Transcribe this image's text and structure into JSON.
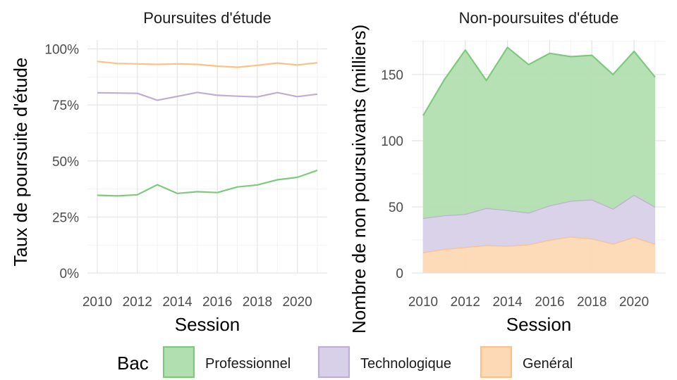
{
  "colors": {
    "Professionnel": {
      "fill": "#b2dfb0",
      "line": "#7fc97f"
    },
    "Technologique": {
      "fill": "#d8d0e8",
      "line": "#beaed4"
    },
    "Genéral": {
      "fill": "#fdd9b5",
      "line": "#fdc086"
    },
    "grid_major": "#e6e6e6",
    "grid_minor": "#f2f2f2"
  },
  "legend": {
    "title": "Bac",
    "position": "bottom",
    "items": [
      "Professionnel",
      "Technologique",
      "Genéral"
    ]
  },
  "chart_data": [
    {
      "type": "line",
      "title": "Poursuites d'étude",
      "xlabel": "Session",
      "ylabel": "Taux de poursuite d'étude",
      "x": [
        2010,
        2011,
        2012,
        2013,
        2014,
        2015,
        2016,
        2017,
        2018,
        2019,
        2020,
        2021
      ],
      "xlim": [
        2010,
        2021
      ],
      "xticks": [
        2010,
        2012,
        2014,
        2016,
        2018,
        2020
      ],
      "ylim": [
        0,
        1
      ],
      "yticks": [
        0,
        0.25,
        0.5,
        0.75,
        1.0
      ],
      "ytick_labels": [
        "0%",
        "25%",
        "50%",
        "75%",
        "100%"
      ],
      "grid": true,
      "series": [
        {
          "name": "Professionnel",
          "values": [
            0.347,
            0.344,
            0.349,
            0.394,
            0.355,
            0.363,
            0.359,
            0.384,
            0.393,
            0.416,
            0.427,
            0.458
          ]
        },
        {
          "name": "Technologique",
          "values": [
            0.804,
            0.803,
            0.802,
            0.771,
            0.788,
            0.806,
            0.793,
            0.789,
            0.786,
            0.805,
            0.787,
            0.798
          ]
        },
        {
          "name": "Genéral",
          "values": [
            0.944,
            0.935,
            0.933,
            0.931,
            0.933,
            0.931,
            0.923,
            0.918,
            0.927,
            0.937,
            0.928,
            0.938
          ]
        }
      ]
    },
    {
      "type": "area",
      "stacked": true,
      "title": "Non-poursuites d'étude",
      "xlabel": "Session",
      "ylabel": "Nombre de non poursuivants (milliers)",
      "x": [
        2010,
        2011,
        2012,
        2013,
        2014,
        2015,
        2016,
        2017,
        2018,
        2019,
        2020,
        2021
      ],
      "xlim": [
        2010,
        2021
      ],
      "xticks": [
        2010,
        2012,
        2014,
        2016,
        2018,
        2020
      ],
      "ylim": [
        0,
        176
      ],
      "yticks": [
        0,
        50,
        100,
        150
      ],
      "ytick_labels": [
        "0",
        "50",
        "100",
        "150"
      ],
      "grid": true,
      "series": [
        {
          "name": "Genéral",
          "values": [
            15.5,
            18,
            19.5,
            21,
            20.5,
            21.5,
            25,
            27.5,
            26,
            22,
            27,
            22
          ]
        },
        {
          "name": "Technologique",
          "values": [
            26,
            25.5,
            25,
            28,
            27,
            24,
            26,
            27,
            29.5,
            26.5,
            32,
            28
          ]
        },
        {
          "name": "Professionnel",
          "values": [
            77.5,
            102.5,
            124,
            96.5,
            123,
            112,
            115,
            109,
            109,
            101.5,
            108.5,
            98
          ]
        }
      ]
    }
  ]
}
